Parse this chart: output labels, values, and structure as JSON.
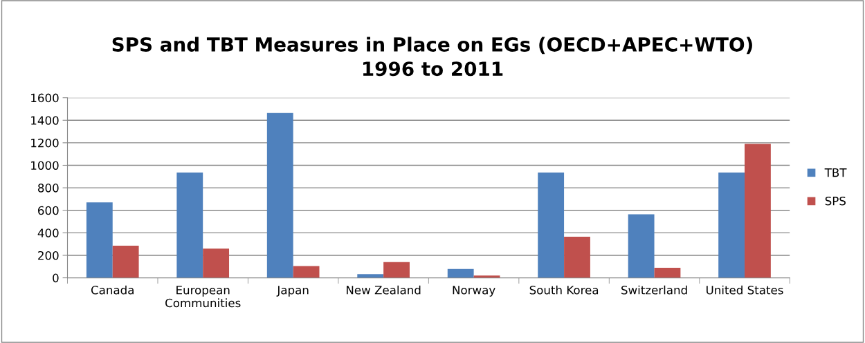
{
  "chart_data": {
    "type": "bar",
    "title": "SPS and TBT Measures in Place on EGs (OECD+APEC+WTO)\n1996 to 2011",
    "categories": [
      "Canada",
      "European\nCommunities",
      "Japan",
      "New Zealand",
      "Norway",
      "South Korea",
      "Switzerland",
      "United States"
    ],
    "series": [
      {
        "name": "TBT",
        "color": "#4f81bd",
        "values": [
          670,
          935,
          1465,
          33,
          78,
          935,
          565,
          935
        ]
      },
      {
        "name": "SPS",
        "color": "#c0504d",
        "values": [
          285,
          260,
          105,
          140,
          20,
          365,
          90,
          1190
        ]
      }
    ],
    "ylim": [
      0,
      1600
    ],
    "yticks": [
      0,
      200,
      400,
      600,
      800,
      1000,
      1200,
      1400,
      1600
    ],
    "grid": "y",
    "legend": "right"
  }
}
